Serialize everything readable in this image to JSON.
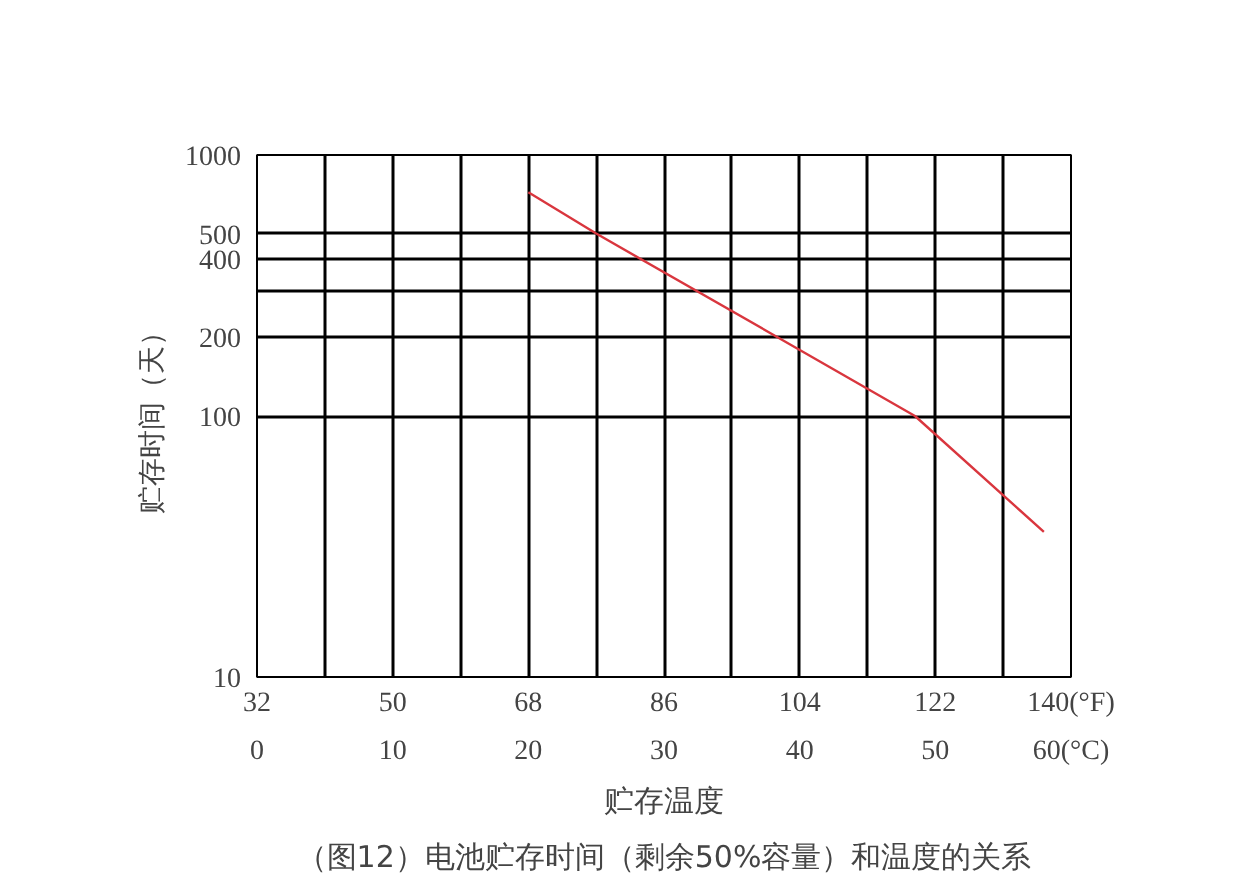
{
  "chart_data": {
    "type": "line",
    "title": "（图12）电池贮存时间（剩余50%容量）和温度的关系",
    "xlabel": "贮存温度",
    "ylabel": "贮存时间（天）",
    "x": [
      20,
      25,
      38.4,
      48.5,
      58
    ],
    "series": [
      {
        "color": "#d9363e",
        "values": [
          720,
          500,
          200,
          100,
          36
        ]
      }
    ],
    "xlim": [
      0,
      60
    ],
    "xticks": [
      0,
      {
        "value": 5,
        "label": null
      },
      10,
      {
        "value": 15,
        "label": null
      },
      20,
      {
        "value": 25,
        "label": null
      },
      30,
      {
        "value": 35,
        "label": null
      },
      40,
      {
        "value": 45,
        "label": null
      },
      50,
      {
        "value": 55,
        "label": null
      },
      {
        "value": 60,
        "label": "60(°C)"
      }
    ],
    "x2lim": [
      32,
      140
    ],
    "x2ticks": [
      32,
      50,
      68,
      86,
      104,
      122,
      {
        "value": 140,
        "label": "140(°F)"
      }
    ],
    "ylim": [
      10,
      1000
    ],
    "yticks": [
      10,
      100,
      200,
      {
        "value": 300,
        "label": null
      },
      400,
      500,
      1000
    ],
    "log": "y",
    "grid": true,
    "marker": "none",
    "line_style": "solid"
  }
}
